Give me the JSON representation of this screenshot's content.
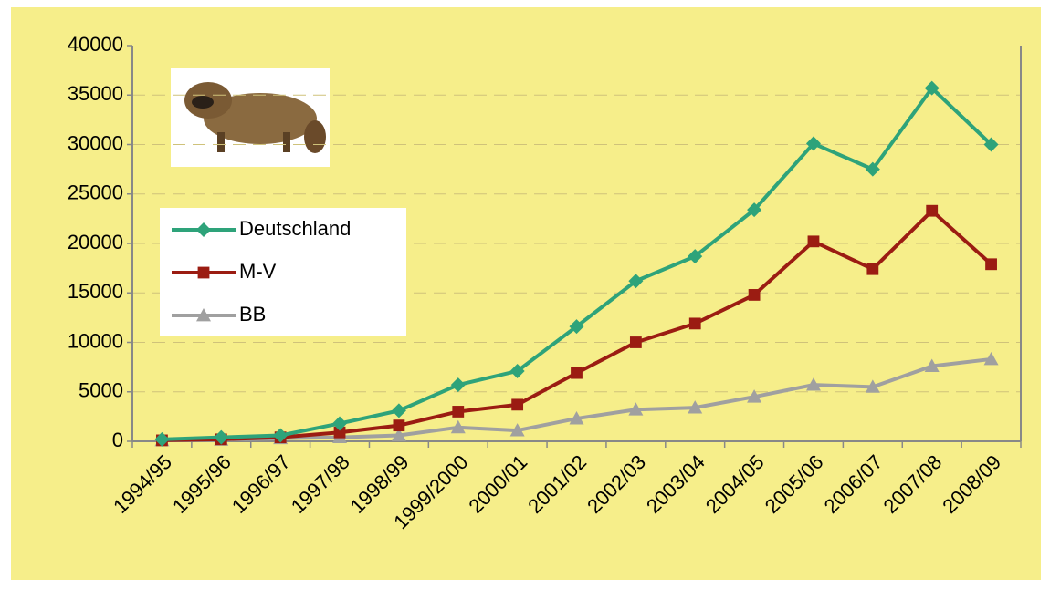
{
  "chart_data": {
    "type": "line",
    "categories": [
      "1994/95",
      "1995/96",
      "1996/97",
      "1997/98",
      "1998/99",
      "1999/2000",
      "2000/01",
      "2001/02",
      "2002/03",
      "2003/04",
      "2004/05",
      "2005/06",
      "2006/07",
      "2007/08",
      "2008/09"
    ],
    "series": [
      {
        "name": "Deutschland",
        "color": "#2ea37a",
        "marker": "diamond",
        "values": [
          200,
          400,
          600,
          1800,
          3100,
          5700,
          7100,
          11600,
          16200,
          18700,
          23400,
          30100,
          27500,
          35700,
          30000
        ]
      },
      {
        "name": "M-V",
        "color": "#9b1c12",
        "marker": "square",
        "values": [
          100,
          200,
          400,
          900,
          1600,
          3000,
          3700,
          6900,
          10000,
          11900,
          14800,
          20200,
          17400,
          23300,
          17900
        ]
      },
      {
        "name": "BB",
        "color": "#a0a0a0",
        "marker": "triangle",
        "values": [
          100,
          150,
          300,
          400,
          600,
          1400,
          1100,
          2300,
          3200,
          3400,
          4500,
          5700,
          5500,
          7600,
          8300
        ]
      }
    ],
    "ylim": [
      0,
      40000
    ],
    "yticks": [
      0,
      5000,
      10000,
      15000,
      20000,
      25000,
      30000,
      35000,
      40000
    ],
    "grid": true,
    "legend": "upper left"
  }
}
